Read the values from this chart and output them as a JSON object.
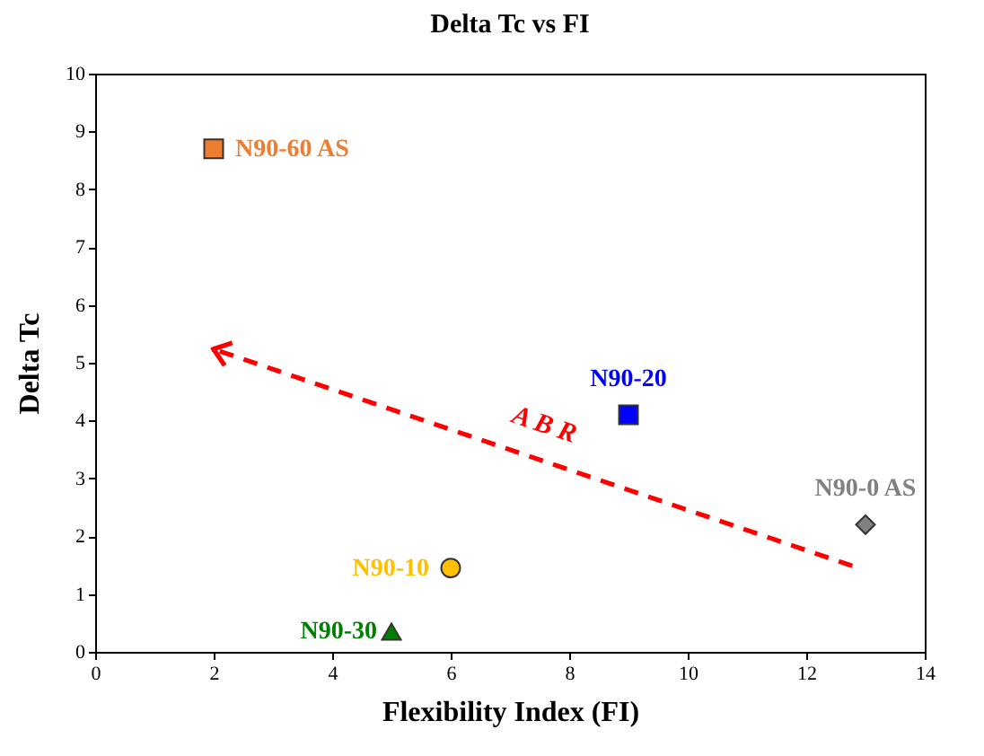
{
  "chart_data": {
    "type": "scatter",
    "title": "Delta Tc vs FI",
    "xlabel": "Flexibility Index (FI)",
    "ylabel": "Delta Tc",
    "xlim": [
      0,
      14
    ],
    "xticks": [
      0,
      2,
      4,
      6,
      8,
      10,
      12,
      14
    ],
    "ylim": [
      0,
      10
    ],
    "yticks": [
      0,
      1,
      2,
      3,
      4,
      5,
      6,
      7,
      8,
      9,
      10
    ],
    "grid": false,
    "series": [
      {
        "name": "N90-60 AS",
        "color": "#ed7d31",
        "marker": "square",
        "x": [
          2
        ],
        "values": [
          8.7
        ]
      },
      {
        "name": "N90-20",
        "color": "#0000ff",
        "marker": "square",
        "x": [
          9
        ],
        "values": [
          4.1
        ]
      },
      {
        "name": "N90-0 AS",
        "color": "#808080",
        "marker": "diamond",
        "x": [
          13
        ],
        "values": [
          2.2
        ]
      },
      {
        "name": "N90-10",
        "color": "#ffc000",
        "marker": "circle",
        "x": [
          6
        ],
        "values": [
          1.45
        ]
      },
      {
        "name": "N90-30",
        "color": "#008000",
        "marker": "triangle",
        "x": [
          5
        ],
        "values": [
          0.35
        ]
      }
    ],
    "annotations": [
      "A B R"
    ]
  }
}
